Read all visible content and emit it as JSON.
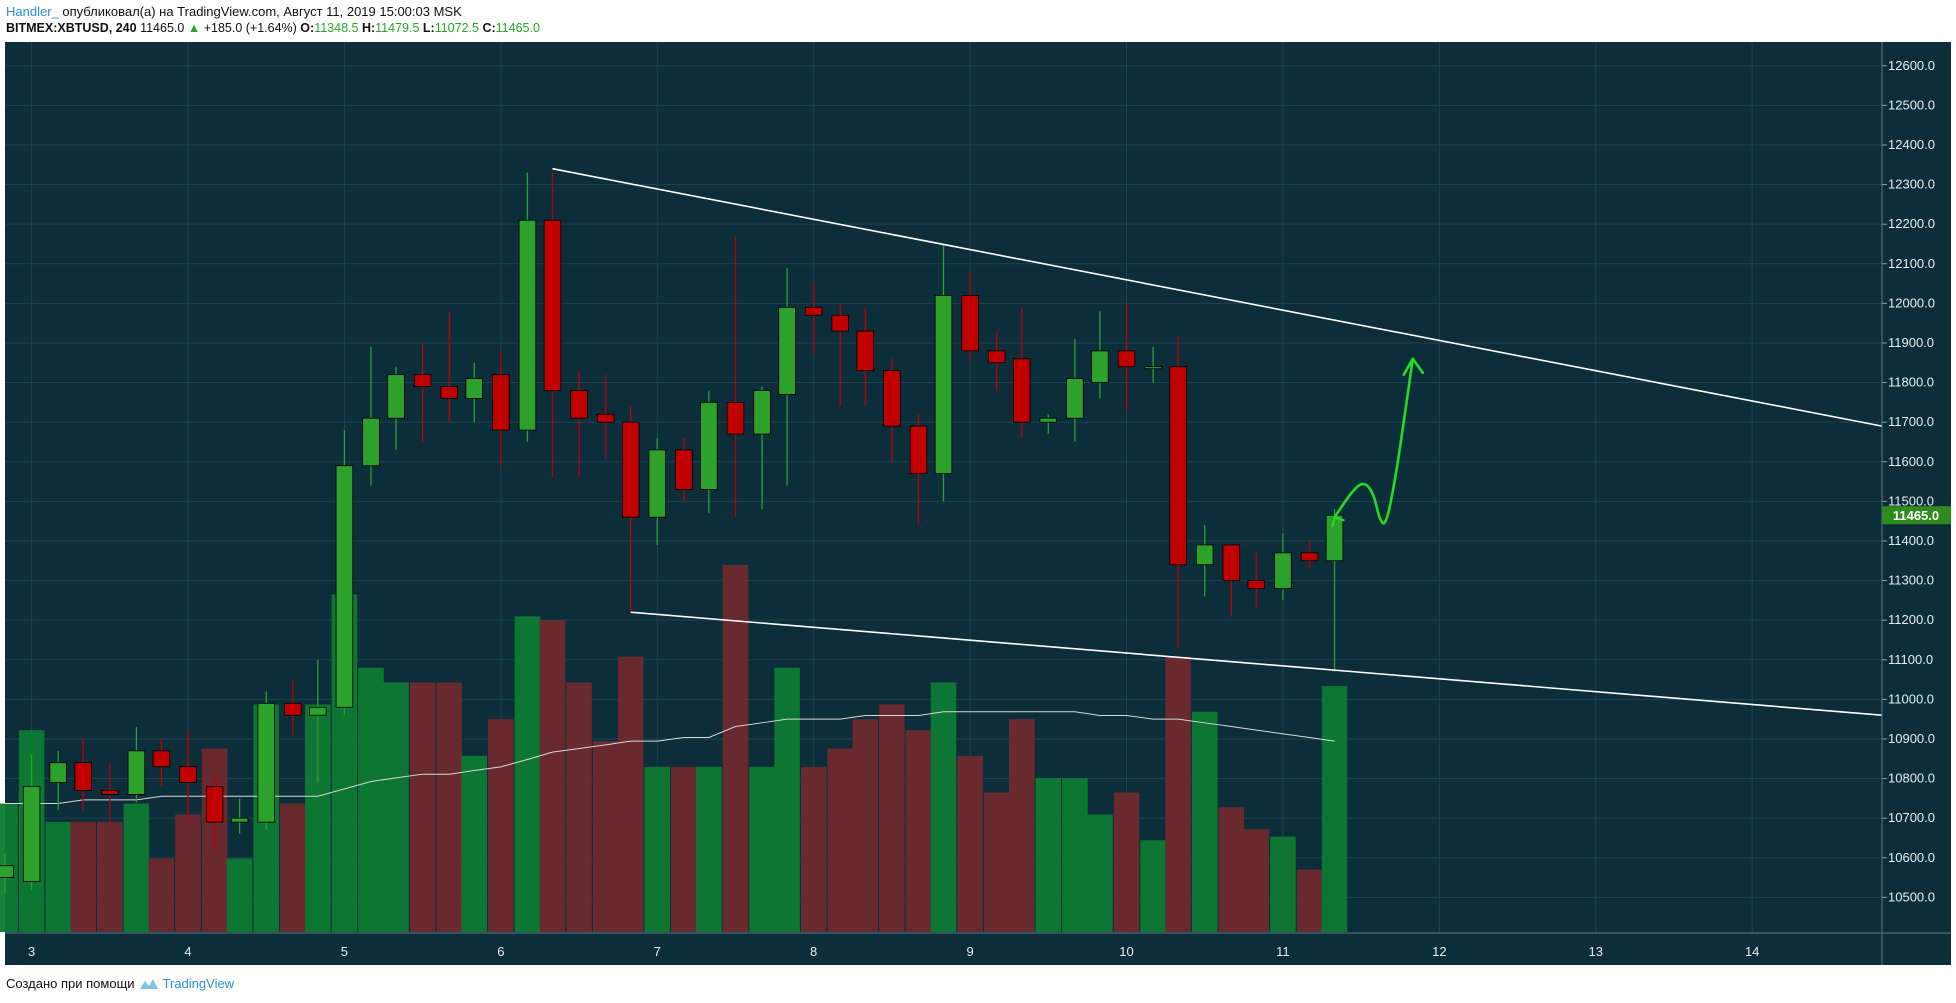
{
  "header": {
    "author": "Handler_",
    "published_text": "опубликовал(а) на TradingView.com, Август 11, 2019 15:00:03 MSK",
    "symbol": "BITMEX:XBTUSD, 240",
    "last": "11465.0",
    "change": "+185.0 (+1.64%)",
    "open_label": "O:",
    "open": "11348.5",
    "high_label": "H:",
    "high": "11479.5",
    "low_label": "L:",
    "low": "11072.5",
    "close_label": "C:",
    "close": "11465.0"
  },
  "footer": {
    "created_text": "Создано при помощи",
    "brand": "TradingView"
  },
  "colors": {
    "background": "#0c2d3a",
    "grid": "#1d4350",
    "up": "#2ca12c",
    "down": "#c00000",
    "vol_up": "#0e7a32",
    "vol_down": "#6e2a2e",
    "arrow": "#22dd22",
    "price_tag": "#2e8b1e"
  },
  "chart_data": {
    "type": "candlestick",
    "symbol": "BITMEX:XBTUSD",
    "timeframe": "240",
    "price_axis": {
      "ticks": [
        "12600.0",
        "12500.0",
        "12400.0",
        "12300.0",
        "12200.0",
        "12100.0",
        "12000.0",
        "11900.0",
        "11800.0",
        "11700.0",
        "11600.0",
        "11500.0",
        "11400.0",
        "11300.0",
        "11200.0",
        "11100.0",
        "11000.0",
        "10900.0",
        "10800.0",
        "10700.0",
        "10600.0",
        "10500.0"
      ],
      "range": [
        10410,
        12660
      ],
      "current_price_label": "11465.0"
    },
    "time_axis": {
      "labels": [
        "3",
        "4",
        "5",
        "6",
        "7",
        "8",
        "9",
        "10",
        "11",
        "12",
        "13",
        "14"
      ],
      "range": [
        2.83,
        14.83
      ]
    },
    "candles": [
      {
        "t": 2.83,
        "o": 10550,
        "h": 10610,
        "l": 10510,
        "c": 10580,
        "v": 0.35
      },
      {
        "t": 3.0,
        "o": 10540,
        "h": 10860,
        "l": 10520,
        "c": 10780,
        "v": 0.55
      },
      {
        "t": 3.17,
        "o": 10790,
        "h": 10870,
        "l": 10720,
        "c": 10840,
        "v": 0.3
      },
      {
        "t": 3.33,
        "o": 10840,
        "h": 10900,
        "l": 10720,
        "c": 10770,
        "v": 0.3
      },
      {
        "t": 3.5,
        "o": 10770,
        "h": 10840,
        "l": 10690,
        "c": 10760,
        "v": 0.3
      },
      {
        "t": 3.67,
        "o": 10760,
        "h": 10930,
        "l": 10740,
        "c": 10870,
        "v": 0.35
      },
      {
        "t": 3.83,
        "o": 10870,
        "h": 10900,
        "l": 10780,
        "c": 10830,
        "v": 0.2
      },
      {
        "t": 4.0,
        "o": 10830,
        "h": 10920,
        "l": 10700,
        "c": 10790,
        "v": 0.32
      },
      {
        "t": 4.17,
        "o": 10780,
        "h": 10810,
        "l": 10620,
        "c": 10690,
        "v": 0.5
      },
      {
        "t": 4.33,
        "o": 10690,
        "h": 10750,
        "l": 10660,
        "c": 10700,
        "v": 0.2
      },
      {
        "t": 4.5,
        "o": 10690,
        "h": 11020,
        "l": 10670,
        "c": 10990,
        "v": 0.62
      },
      {
        "t": 4.67,
        "o": 10990,
        "h": 11050,
        "l": 10910,
        "c": 10960,
        "v": 0.35
      },
      {
        "t": 4.83,
        "o": 10960,
        "h": 11100,
        "l": 10790,
        "c": 10980,
        "v": 0.62
      },
      {
        "t": 5.0,
        "o": 10980,
        "h": 11680,
        "l": 10960,
        "c": 11590,
        "v": 0.92
      },
      {
        "t": 5.17,
        "o": 11590,
        "h": 11890,
        "l": 11540,
        "c": 11710,
        "v": 0.72
      },
      {
        "t": 5.33,
        "o": 11710,
        "h": 11840,
        "l": 11630,
        "c": 11820,
        "v": 0.68
      },
      {
        "t": 5.5,
        "o": 11820,
        "h": 11900,
        "l": 11650,
        "c": 11790,
        "v": 0.68
      },
      {
        "t": 5.67,
        "o": 11790,
        "h": 11980,
        "l": 11700,
        "c": 11760,
        "v": 0.68
      },
      {
        "t": 5.83,
        "o": 11760,
        "h": 11850,
        "l": 11700,
        "c": 11810,
        "v": 0.48
      },
      {
        "t": 6.0,
        "o": 11820,
        "h": 11880,
        "l": 11590,
        "c": 11680,
        "v": 0.58
      },
      {
        "t": 6.17,
        "o": 11680,
        "h": 12330,
        "l": 11650,
        "c": 12210,
        "v": 0.86
      },
      {
        "t": 6.33,
        "o": 12210,
        "h": 12330,
        "l": 11560,
        "c": 11780,
        "v": 0.85
      },
      {
        "t": 6.5,
        "o": 11780,
        "h": 11830,
        "l": 11560,
        "c": 11710,
        "v": 0.68
      },
      {
        "t": 6.67,
        "o": 11720,
        "h": 11820,
        "l": 11610,
        "c": 11700,
        "v": 0.52
      },
      {
        "t": 6.83,
        "o": 11700,
        "h": 11740,
        "l": 11220,
        "c": 11460,
        "v": 0.75
      },
      {
        "t": 7.0,
        "o": 11460,
        "h": 11660,
        "l": 11390,
        "c": 11630,
        "v": 0.45
      },
      {
        "t": 7.17,
        "o": 11630,
        "h": 11660,
        "l": 11500,
        "c": 11530,
        "v": 0.45
      },
      {
        "t": 7.33,
        "o": 11530,
        "h": 11780,
        "l": 11470,
        "c": 11750,
        "v": 0.45
      },
      {
        "t": 7.5,
        "o": 11750,
        "h": 12170,
        "l": 11460,
        "c": 11670,
        "v": 1.0
      },
      {
        "t": 7.67,
        "o": 11670,
        "h": 11790,
        "l": 11480,
        "c": 11780,
        "v": 0.45
      },
      {
        "t": 7.83,
        "o": 11770,
        "h": 12090,
        "l": 11540,
        "c": 11990,
        "v": 0.72
      },
      {
        "t": 8.0,
        "o": 11990,
        "h": 12050,
        "l": 11870,
        "c": 11970,
        "v": 0.45
      },
      {
        "t": 8.17,
        "o": 11970,
        "h": 12000,
        "l": 11740,
        "c": 11930,
        "v": 0.5
      },
      {
        "t": 8.33,
        "o": 11930,
        "h": 11990,
        "l": 11740,
        "c": 11830,
        "v": 0.58
      },
      {
        "t": 8.5,
        "o": 11830,
        "h": 11860,
        "l": 11600,
        "c": 11690,
        "v": 0.62
      },
      {
        "t": 8.67,
        "o": 11690,
        "h": 11720,
        "l": 11440,
        "c": 11570,
        "v": 0.55
      },
      {
        "t": 8.83,
        "o": 11570,
        "h": 12150,
        "l": 11500,
        "c": 12020,
        "v": 0.68
      },
      {
        "t": 9.0,
        "o": 12020,
        "h": 12080,
        "l": 11860,
        "c": 11880,
        "v": 0.48
      },
      {
        "t": 9.17,
        "o": 11880,
        "h": 11930,
        "l": 11780,
        "c": 11850,
        "v": 0.38
      },
      {
        "t": 9.33,
        "o": 11860,
        "h": 11990,
        "l": 11660,
        "c": 11700,
        "v": 0.58
      },
      {
        "t": 9.5,
        "o": 11700,
        "h": 11720,
        "l": 11670,
        "c": 11710,
        "v": 0.42
      },
      {
        "t": 9.67,
        "o": 11710,
        "h": 11910,
        "l": 11650,
        "c": 11810,
        "v": 0.42
      },
      {
        "t": 9.83,
        "o": 11800,
        "h": 11980,
        "l": 11760,
        "c": 11880,
        "v": 0.32
      },
      {
        "t": 10.0,
        "o": 11880,
        "h": 12000,
        "l": 11730,
        "c": 11840,
        "v": 0.38
      },
      {
        "t": 10.17,
        "o": 11840,
        "h": 11890,
        "l": 11800,
        "c": 11840,
        "v": 0.25
      },
      {
        "t": 10.33,
        "o": 11840,
        "h": 11920,
        "l": 11130,
        "c": 11340,
        "v": 0.75
      },
      {
        "t": 10.5,
        "o": 11340,
        "h": 11440,
        "l": 11260,
        "c": 11390,
        "v": 0.6
      },
      {
        "t": 10.67,
        "o": 11390,
        "h": 11390,
        "l": 11210,
        "c": 11300,
        "v": 0.34
      },
      {
        "t": 10.83,
        "o": 11300,
        "h": 11370,
        "l": 11230,
        "c": 11280,
        "v": 0.28
      },
      {
        "t": 11.0,
        "o": 11280,
        "h": 11420,
        "l": 11250,
        "c": 11370,
        "v": 0.26
      },
      {
        "t": 11.17,
        "o": 11370,
        "h": 11400,
        "l": 11330,
        "c": 11350,
        "v": 0.17
      },
      {
        "t": 11.33,
        "o": 11350,
        "h": 11480,
        "l": 11070,
        "c": 11465,
        "v": 0.67
      }
    ],
    "volume_ma": [
      0.35,
      0.35,
      0.35,
      0.36,
      0.36,
      0.36,
      0.37,
      0.37,
      0.37,
      0.37,
      0.37,
      0.37,
      0.37,
      0.39,
      0.41,
      0.42,
      0.43,
      0.43,
      0.44,
      0.45,
      0.47,
      0.49,
      0.5,
      0.51,
      0.52,
      0.52,
      0.53,
      0.53,
      0.56,
      0.57,
      0.58,
      0.58,
      0.58,
      0.59,
      0.59,
      0.59,
      0.6,
      0.6,
      0.6,
      0.6,
      0.6,
      0.6,
      0.59,
      0.59,
      0.58,
      0.58,
      0.57,
      0.56,
      0.55,
      0.54,
      0.53,
      0.52
    ],
    "trendlines": [
      {
        "from": {
          "t": 6.33,
          "p": 12340
        },
        "to": {
          "t": 14.83,
          "p": 11690
        }
      },
      {
        "from": {
          "t": 6.83,
          "p": 11220
        },
        "to": {
          "t": 14.83,
          "p": 10960
        }
      }
    ],
    "annotation_arrow": [
      {
        "t": 11.33,
        "p": 11460
      },
      {
        "t": 11.45,
        "p": 11530
      },
      {
        "t": 11.52,
        "p": 11550
      },
      {
        "t": 11.58,
        "p": 11520
      },
      {
        "t": 11.62,
        "p": 11450
      },
      {
        "t": 11.66,
        "p": 11440
      },
      {
        "t": 11.72,
        "p": 11560
      },
      {
        "t": 11.78,
        "p": 11720
      },
      {
        "t": 11.83,
        "p": 11860
      }
    ]
  }
}
